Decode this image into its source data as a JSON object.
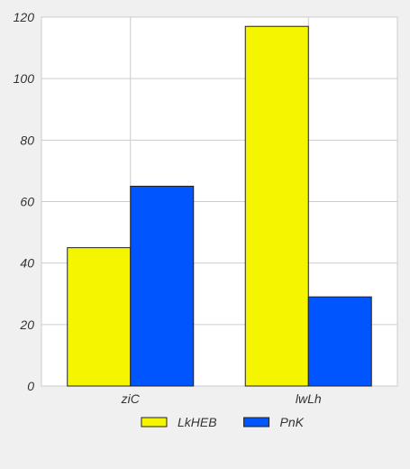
{
  "chart_data": {
    "type": "bar",
    "title": "",
    "xlabel": "",
    "ylabel": "",
    "categories": [
      "ziC",
      "lwLh"
    ],
    "series": [
      {
        "name": "LkHEB",
        "values": [
          45,
          117
        ],
        "color": "#f5f500"
      },
      {
        "name": "PnK",
        "values": [
          65,
          29
        ],
        "color": "#0055ff"
      }
    ],
    "ylim": [
      0,
      120
    ],
    "yticks": [
      0,
      20,
      40,
      60,
      80,
      100,
      120
    ],
    "grid": true,
    "legend_position": "bottom",
    "background": "#f0f0f0",
    "plot_background": "#ffffff"
  }
}
